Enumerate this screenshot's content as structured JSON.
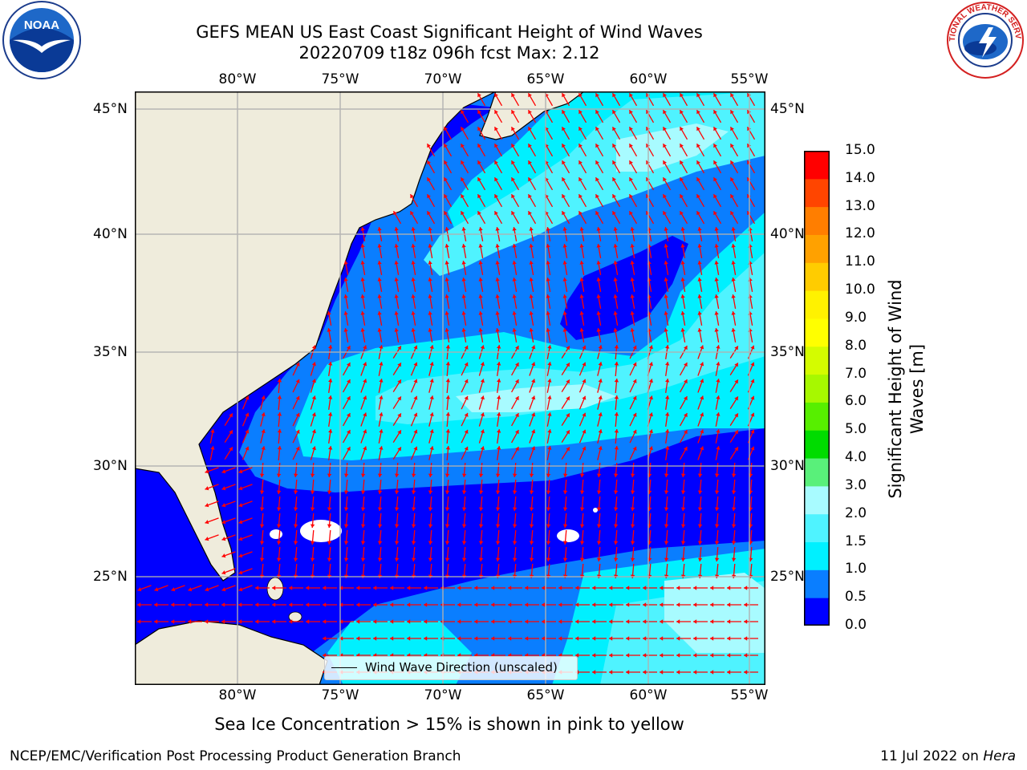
{
  "title": {
    "line1": "GEFS MEAN US East Coast Significant Height of Wind Waves",
    "line2": "20220709 t18z 096h fcst   Max: 2.12"
  },
  "logos": {
    "left": {
      "text": "NOAA"
    },
    "right": {
      "text": "NATIONAL WEATHER SERVICE"
    }
  },
  "map": {
    "lon_labels": [
      "80°W",
      "75°W",
      "70°W",
      "65°W",
      "60°W",
      "55°W"
    ],
    "lat_labels": [
      "45°N",
      "40°N",
      "35°N",
      "30°N",
      "25°N"
    ],
    "legend_label": "Wind Wave Direction (unscaled)",
    "colors": {
      "land": "#efecdc",
      "arrow": "#ff0000",
      "grid": "#b0b0b0",
      "band_0_0.5": "#0000ff",
      "band_0.5_1.0": "#0a7eff",
      "band_1.0_1.5": "#00f0ff",
      "band_1.5_2.0": "#4ff3ff",
      "band_2.0_3.0": "#a8fbff"
    }
  },
  "colorbar": {
    "title": "Significant Height of Wind Waves [m]",
    "ticks": [
      "15.0",
      "14.0",
      "13.0",
      "12.0",
      "11.0",
      "10.0",
      "9.0",
      "8.0",
      "7.0",
      "6.0",
      "5.0",
      "4.0",
      "3.0",
      "2.0",
      "1.5",
      "1.0",
      "0.5",
      "0.0"
    ],
    "colors": [
      "#0000ff",
      "#0a7eff",
      "#00f0ff",
      "#4ff3ff",
      "#a8fbff",
      "#59f07a",
      "#00dc00",
      "#57ef00",
      "#a7f800",
      "#d4fc00",
      "#ffff00",
      "#fff200",
      "#ffcc00",
      "#ffa100",
      "#ff7e00",
      "#ff4500",
      "#ff0000"
    ]
  },
  "footnote": "Sea Ice Concentration > 15% is shown in pink to yellow",
  "credit": "NCEP/EMC/Verification Post Processing Product Generation Branch",
  "date": {
    "text": "11 Jul 2022 on",
    "machine": "Hera"
  }
}
